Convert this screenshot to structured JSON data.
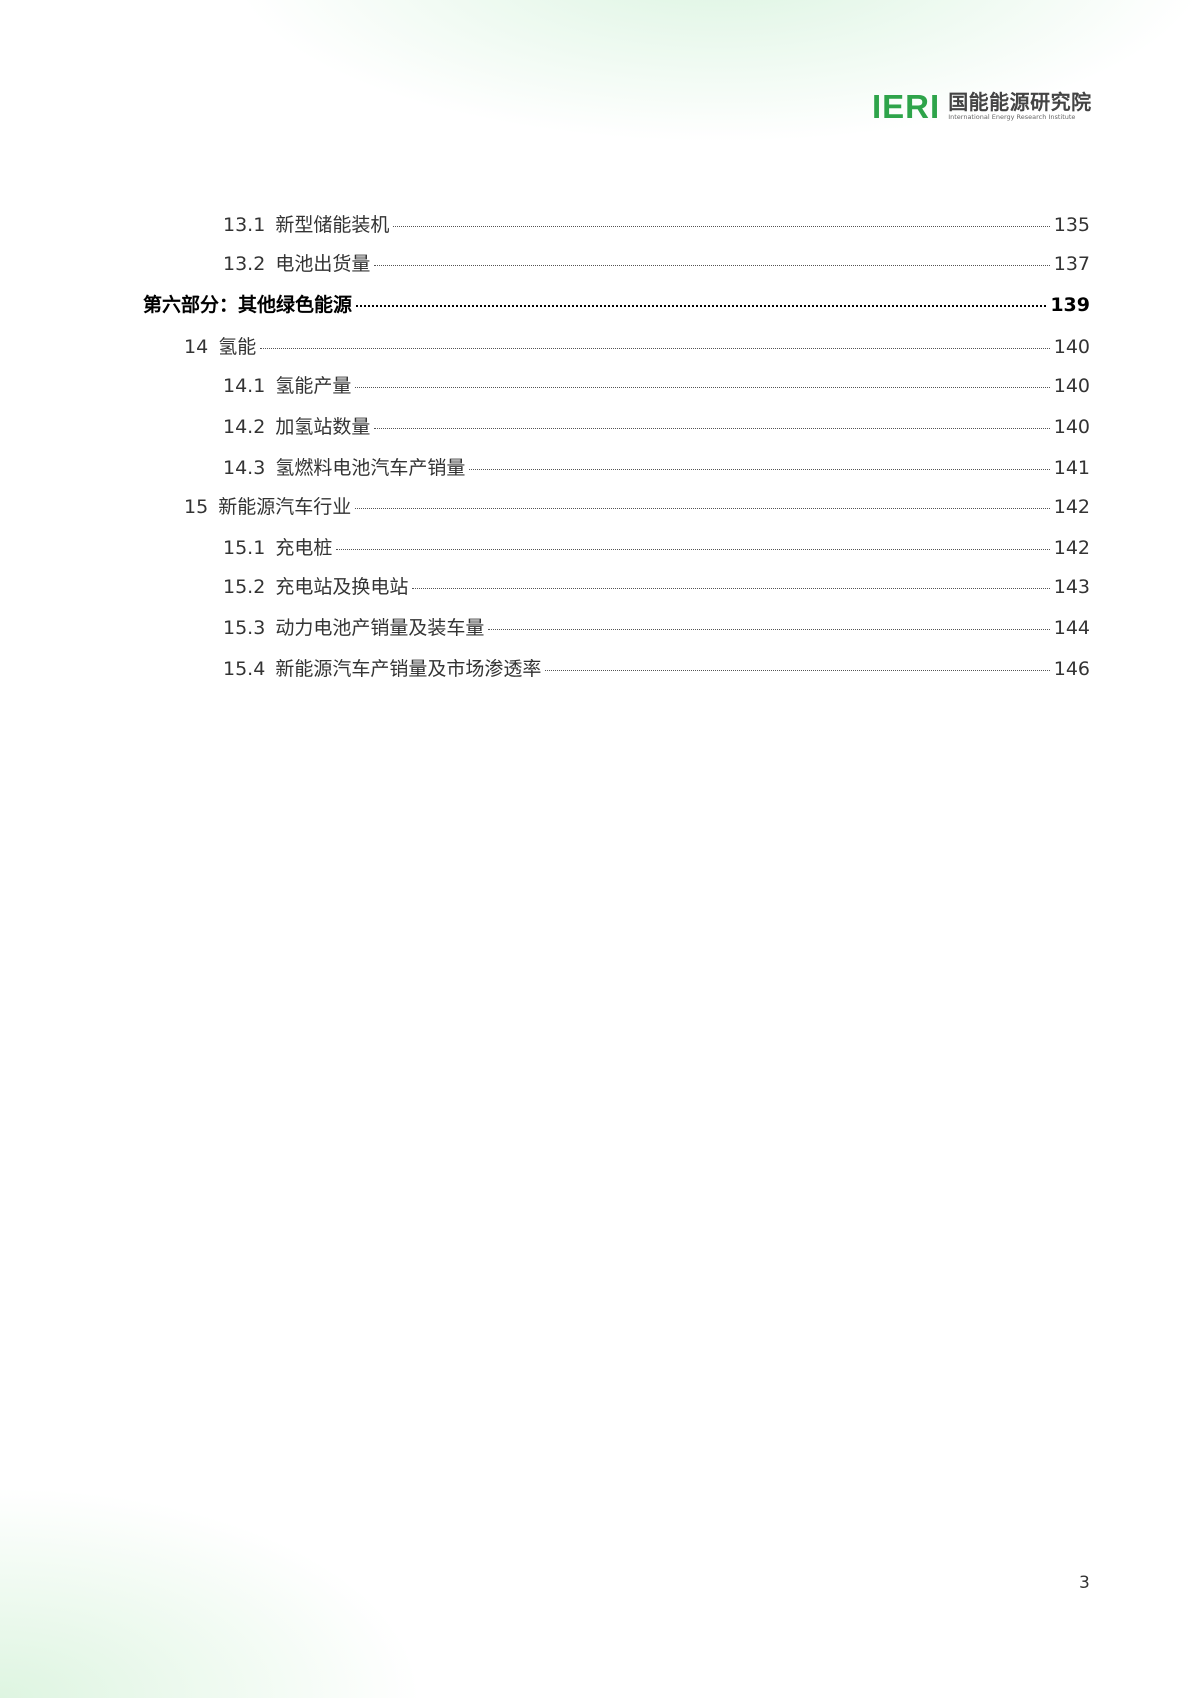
{
  "header": {
    "logo_mark": "IERI",
    "logo_cn": "国能能源研究院",
    "logo_en": "International Energy Research Institute",
    "brand_color": "#2ea44a"
  },
  "toc": [
    {
      "level": 3,
      "num": "13.1",
      "title": "新型储能装机",
      "page": "135"
    },
    {
      "level": 3,
      "num": "13.2",
      "title": "电池出货量",
      "page": "137"
    },
    {
      "level": 1,
      "num": "",
      "title": "第六部分：其他绿色能源",
      "page": "139"
    },
    {
      "level": 2,
      "num": "14",
      "title": "氢能",
      "page": "140"
    },
    {
      "level": 3,
      "num": "14.1",
      "title": "氢能产量",
      "page": "140"
    },
    {
      "level": 3,
      "num": "14.2",
      "title": "加氢站数量",
      "page": "140"
    },
    {
      "level": 3,
      "num": "14.3",
      "title": "氢燃料电池汽车产销量",
      "page": "141"
    },
    {
      "level": 2,
      "num": "15",
      "title": "新能源汽车行业",
      "page": "142"
    },
    {
      "level": 3,
      "num": "15.1",
      "title": "充电桩",
      "page": "142"
    },
    {
      "level": 3,
      "num": "15.2",
      "title": "充电站及换电站",
      "page": "143"
    },
    {
      "level": 3,
      "num": "15.3",
      "title": "动力电池产销量及装车量",
      "page": "144"
    },
    {
      "level": 3,
      "num": "15.4",
      "title": "新能源汽车产销量及市场渗透率",
      "page": "146"
    }
  ],
  "footer": {
    "page_number": "3"
  }
}
